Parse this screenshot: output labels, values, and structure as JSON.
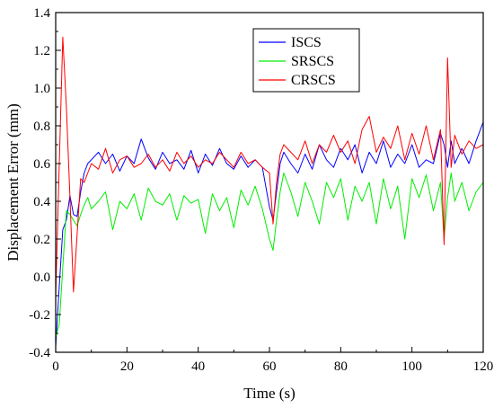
{
  "chart_data": {
    "type": "line",
    "title": "",
    "xlabel": "Time (s)",
    "ylabel": "Displacement Error (mm)",
    "xlim": [
      0,
      120
    ],
    "ylim": [
      -0.4,
      1.4
    ],
    "x_ticks": [
      0,
      20,
      40,
      60,
      80,
      100,
      120
    ],
    "x_tick_labels": [
      "0",
      "20",
      "40",
      "60",
      "80",
      "100",
      "120"
    ],
    "y_ticks": [
      -0.4,
      -0.2,
      0.0,
      0.2,
      0.4,
      0.6,
      0.8,
      1.0,
      1.2,
      1.4
    ],
    "y_tick_labels": [
      "-0.4",
      "-0.2",
      "0.0",
      "0.2",
      "0.4",
      "0.6",
      "0.8",
      "1.0",
      "1.2",
      "1.4"
    ],
    "grid": false,
    "legend_position": "top-center",
    "x": [
      0,
      1,
      2,
      3,
      4,
      5,
      6,
      7,
      8,
      9,
      10,
      12,
      14,
      16,
      18,
      20,
      22,
      24,
      26,
      28,
      30,
      32,
      34,
      36,
      38,
      40,
      42,
      44,
      46,
      48,
      50,
      52,
      54,
      56,
      58,
      60,
      61,
      62,
      63,
      64,
      66,
      68,
      70,
      72,
      74,
      76,
      78,
      80,
      82,
      84,
      86,
      88,
      90,
      92,
      94,
      96,
      98,
      100,
      102,
      104,
      106,
      108,
      109,
      110,
      111,
      112,
      114,
      116,
      118,
      120
    ],
    "series": [
      {
        "name": "ISCS",
        "color": "#0000ff",
        "values": [
          -0.37,
          -0.05,
          0.25,
          0.3,
          0.43,
          0.33,
          0.32,
          0.45,
          0.55,
          0.6,
          0.62,
          0.66,
          0.6,
          0.65,
          0.56,
          0.64,
          0.6,
          0.73,
          0.63,
          0.57,
          0.66,
          0.6,
          0.62,
          0.57,
          0.67,
          0.55,
          0.65,
          0.59,
          0.68,
          0.6,
          0.57,
          0.64,
          0.58,
          0.62,
          0.58,
          0.37,
          0.3,
          0.45,
          0.6,
          0.66,
          0.6,
          0.55,
          0.65,
          0.57,
          0.7,
          0.62,
          0.58,
          0.68,
          0.62,
          0.7,
          0.55,
          0.66,
          0.6,
          0.72,
          0.58,
          0.65,
          0.6,
          0.7,
          0.58,
          0.62,
          0.6,
          0.76,
          0.7,
          0.58,
          0.72,
          0.6,
          0.68,
          0.6,
          0.72,
          0.82
        ]
      },
      {
        "name": "SRSCS",
        "color": "#00ee00",
        "values": [
          -0.32,
          -0.25,
          0.05,
          0.35,
          0.33,
          0.3,
          0.27,
          0.33,
          0.38,
          0.42,
          0.36,
          0.4,
          0.45,
          0.25,
          0.4,
          0.36,
          0.44,
          0.3,
          0.47,
          0.4,
          0.38,
          0.44,
          0.3,
          0.43,
          0.39,
          0.41,
          0.23,
          0.44,
          0.35,
          0.42,
          0.26,
          0.46,
          0.38,
          0.48,
          0.36,
          0.2,
          0.14,
          0.3,
          0.45,
          0.55,
          0.45,
          0.32,
          0.5,
          0.4,
          0.28,
          0.5,
          0.42,
          0.52,
          0.3,
          0.48,
          0.4,
          0.5,
          0.28,
          0.52,
          0.36,
          0.48,
          0.2,
          0.52,
          0.42,
          0.54,
          0.35,
          0.5,
          0.2,
          0.42,
          0.55,
          0.4,
          0.5,
          0.35,
          0.45,
          0.5
        ]
      },
      {
        "name": "CRSCS",
        "color": "#ff0000",
        "values": [
          -0.1,
          0.6,
          1.27,
          0.9,
          0.42,
          -0.08,
          0.22,
          0.52,
          0.5,
          0.55,
          0.6,
          0.57,
          0.68,
          0.55,
          0.62,
          0.64,
          0.58,
          0.6,
          0.65,
          0.58,
          0.62,
          0.56,
          0.66,
          0.6,
          0.64,
          0.58,
          0.62,
          0.6,
          0.66,
          0.62,
          0.58,
          0.66,
          0.6,
          0.62,
          0.58,
          0.55,
          0.28,
          0.5,
          0.65,
          0.7,
          0.66,
          0.62,
          0.72,
          0.6,
          0.7,
          0.66,
          0.75,
          0.66,
          0.72,
          0.6,
          0.78,
          0.85,
          0.66,
          0.74,
          0.68,
          0.8,
          0.62,
          0.76,
          0.65,
          0.8,
          0.62,
          0.78,
          0.17,
          1.16,
          0.58,
          0.75,
          0.65,
          0.72,
          0.68,
          0.7
        ]
      }
    ]
  }
}
